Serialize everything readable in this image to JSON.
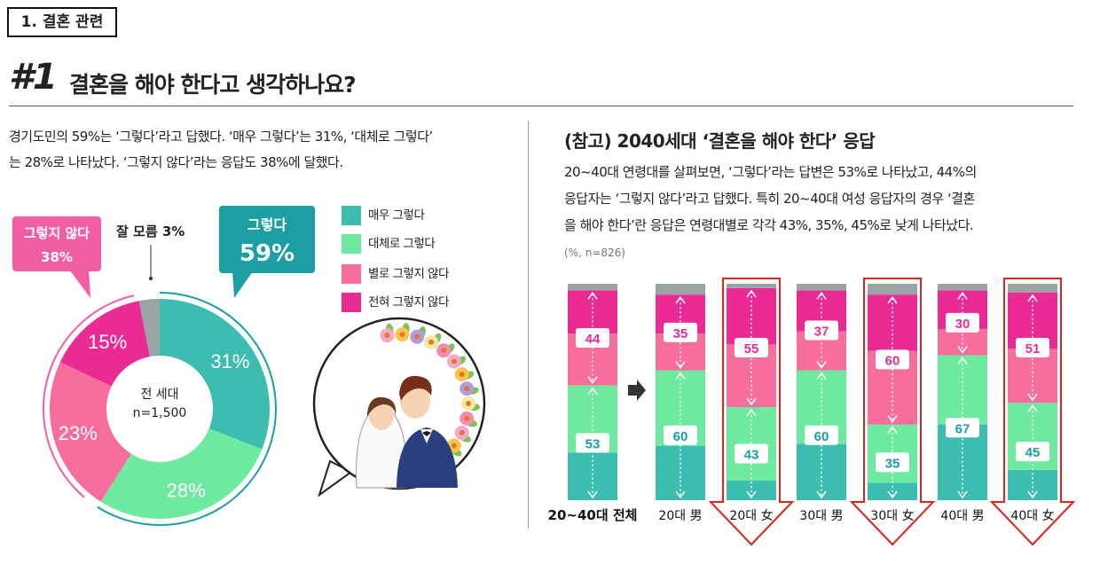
{
  "header": {
    "section_tag": "1. 결혼 관련",
    "number": "#1",
    "question": "결혼을 해야 한다고 생각하나요?"
  },
  "left": {
    "summary_line1": "경기도민의 59%는 ‘그렇다’라고 답했다. ‘매우 그렇다’는 31%, ‘대체로 그렇다’",
    "summary_line2": "는 28%로 나타났다. ‘그렇지 않다’라는 응답도 38%에 달했다.",
    "center_label": "전 세대",
    "center_n": "n=1,500",
    "callout_yes_label": "그렇다",
    "callout_yes_value": "59%",
    "callout_no_label": "그렇지 않다",
    "callout_no_value": "38%",
    "dontknow_label": "잘 모름 3%"
  },
  "right": {
    "title": "(참고) 2040세대 ‘결혼을 해야 한다’ 응답",
    "text_line1": "20~40대 연령대를 살펴보면, ‘그렇다’라는 답변은 53%로 나타났고, 44%의",
    "text_line2": "응답자는 ‘그렇지 않다’라고 답했다. 특히 20~40대 여성 응답자의 경우 ‘결혼",
    "text_line3": "을 해야 한다’란 응답은 연령대별로 각각 43%, 35%, 45%로 낮게 나타났다.",
    "unit_note": "(%, n=826)"
  },
  "colors": {
    "very_yes": "#3dbdb0",
    "mostly_yes": "#6eeaa0",
    "mostly_no": "#f76d9d",
    "not_at_all": "#ea2b93",
    "dont_know": "#9aa3a6",
    "callout_yes": "#1b9fa3",
    "callout_no": "#f25ea4",
    "highlight": "#d8261e"
  },
  "chart_data": [
    {
      "type": "pie",
      "categories": [
        "매우 그렇다",
        "대체로 그렇다",
        "별로 그렇지 않다",
        "전혀 그렇지 않다",
        "잘 모름"
      ],
      "values": [
        31,
        28,
        23,
        15,
        3
      ],
      "value_labels": [
        "31%",
        "28%",
        "23%",
        "15%",
        "3%"
      ],
      "legend": [
        "매우 그렇다",
        "대체로 그렇다",
        "별로 그렇지 않다",
        "전혀 그렇지 않다"
      ],
      "legend_position": "right"
    },
    {
      "type": "bar",
      "stacked": true,
      "categories": [
        "20~40대 전체",
        "20대 男",
        "20대 女",
        "30대 男",
        "30대 女",
        "40대 男",
        "40대 女"
      ],
      "series": [
        {
          "name": "매우 그렇다",
          "values": [
            22,
            25,
            9,
            26,
            8,
            35,
            14
          ]
        },
        {
          "name": "대체로 그렇다",
          "values": [
            31,
            35,
            34,
            34,
            27,
            32,
            31
          ]
        },
        {
          "name": "별로 그렇지 않다",
          "values": [
            24,
            17,
            29,
            18,
            34,
            12,
            25
          ]
        },
        {
          "name": "전혀 그렇지 않다",
          "values": [
            20,
            18,
            26,
            19,
            26,
            18,
            26
          ]
        },
        {
          "name": "잘 모름",
          "values": [
            3,
            5,
            2,
            3,
            5,
            3,
            4
          ]
        }
      ],
      "yes_totals": [
        53,
        60,
        43,
        60,
        35,
        67,
        45
      ],
      "no_totals": [
        44,
        35,
        55,
        37,
        60,
        30,
        51
      ],
      "highlighted": [
        "20대 女",
        "30대 女",
        "40대 女"
      ],
      "ylim": [
        0,
        100
      ]
    }
  ]
}
